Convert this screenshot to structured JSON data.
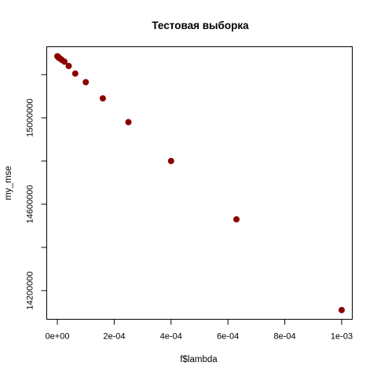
{
  "chart_data": {
    "type": "scatter",
    "title": "Тестовая выборка",
    "xlabel": "f$lambda",
    "ylabel": "my_mse",
    "xlim": [
      0,
      0.001
    ],
    "ylim": [
      14200000,
      15300000
    ],
    "xticks": [
      0,
      0.0002,
      0.0004,
      0.0006,
      0.0008,
      0.001
    ],
    "xtick_labels": [
      "0e+00",
      "2e-04",
      "4e-04",
      "6e-04",
      "8e-04",
      "1e-03"
    ],
    "yticks": [
      14200000,
      14600000,
      15000000
    ],
    "ytick_labels": [
      "14200000",
      "14600000",
      "15000000"
    ],
    "ytick_marks": [
      14200000,
      14400000,
      14600000,
      14800000,
      15000000,
      15200000
    ],
    "point_color": "#8b0000",
    "grid": false,
    "x": [
      0,
      2.5e-06,
      4e-06,
      6.3e-06,
      1e-05,
      1.6e-05,
      2.5e-05,
      4e-05,
      6.3e-05,
      0.0001,
      0.00016,
      0.00025,
      0.0004,
      0.00063,
      0.001
    ],
    "y": [
      15285000,
      15282000,
      15280000,
      15277000,
      15274000,
      15268000,
      15260000,
      15240000,
      15205000,
      15165000,
      15090000,
      14980000,
      14800000,
      14530000,
      14110000
    ]
  }
}
